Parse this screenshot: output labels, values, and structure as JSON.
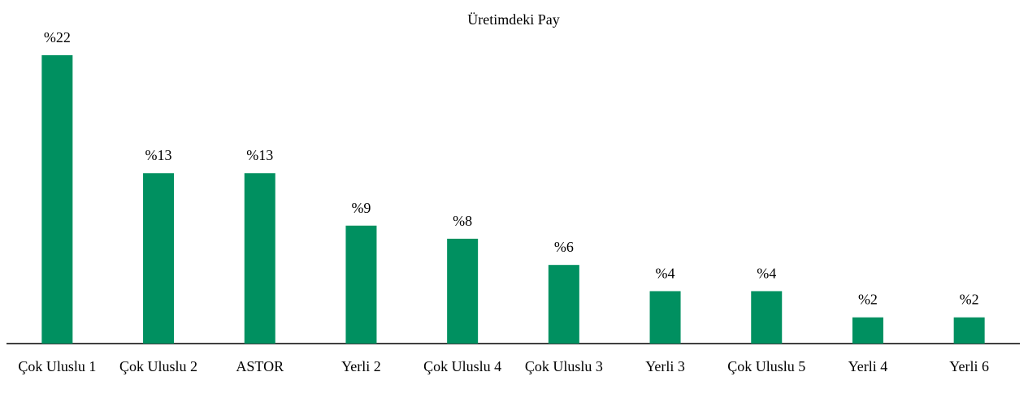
{
  "chart_data": {
    "type": "bar",
    "title": "Üretimdeki Pay",
    "categories": [
      "Çok Uluslu 1",
      "Çok Uluslu 2",
      "ASTOR",
      "Yerli 2",
      "Çok Uluslu 4",
      "Çok Uluslu 3",
      "Yerli 3",
      "Çok Uluslu 5",
      "Yerli 4",
      "Yerli 6"
    ],
    "values": [
      22,
      13,
      13,
      9,
      8,
      6,
      4,
      4,
      2,
      2
    ],
    "value_labels": [
      "%22",
      "%13",
      "%13",
      "%9",
      "%8",
      "%6",
      "%4",
      "%4",
      "%2",
      "%2"
    ],
    "color": "#009060"
  }
}
